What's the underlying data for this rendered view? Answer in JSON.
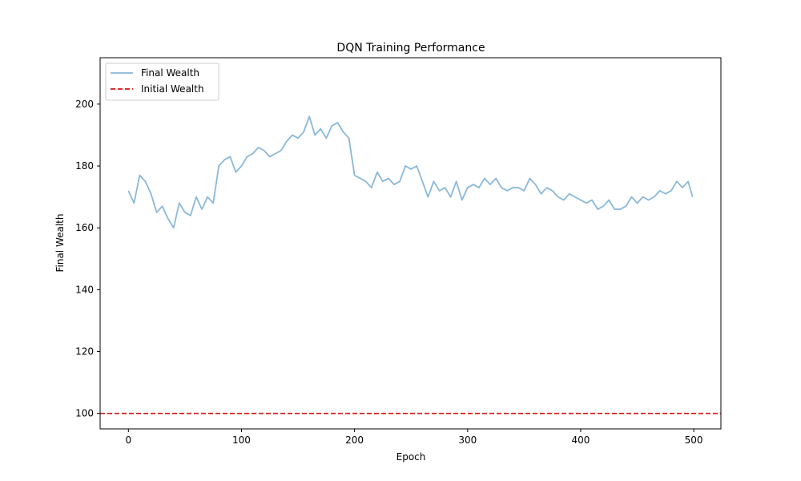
{
  "chart_data": {
    "type": "line",
    "title": "DQN Training Performance",
    "xlabel": "Epoch",
    "ylabel": "Final Wealth",
    "xlim": [
      -25,
      524
    ],
    "ylim": [
      95,
      215
    ],
    "xticks": [
      0,
      100,
      200,
      300,
      400,
      500
    ],
    "yticks": [
      100,
      120,
      140,
      160,
      180,
      200
    ],
    "grid": false,
    "legend_position": "top-left",
    "series": [
      {
        "name": "Final Wealth",
        "color": "#8ab8d9",
        "style": "solid",
        "x": [
          0,
          5,
          10,
          15,
          20,
          25,
          30,
          35,
          40,
          45,
          50,
          55,
          60,
          65,
          70,
          75,
          80,
          85,
          90,
          95,
          100,
          105,
          110,
          115,
          120,
          125,
          130,
          135,
          140,
          145,
          150,
          155,
          160,
          165,
          170,
          175,
          180,
          185,
          190,
          195,
          200,
          205,
          210,
          215,
          220,
          225,
          230,
          235,
          240,
          245,
          250,
          255,
          260,
          265,
          270,
          275,
          280,
          285,
          290,
          295,
          300,
          305,
          310,
          315,
          320,
          325,
          330,
          335,
          340,
          345,
          350,
          355,
          360,
          365,
          370,
          375,
          380,
          385,
          390,
          395,
          400,
          405,
          410,
          415,
          420,
          425,
          430,
          435,
          440,
          445,
          450,
          455,
          460,
          465,
          470,
          475,
          480,
          485,
          490,
          495,
          499
        ],
        "y": [
          172,
          168,
          177,
          175,
          171,
          165,
          167,
          163,
          160,
          168,
          165,
          164,
          170,
          166,
          170,
          168,
          180,
          182,
          183,
          178,
          180,
          183,
          184,
          186,
          185,
          183,
          184,
          185,
          188,
          190,
          189,
          191,
          196,
          190,
          192,
          189,
          193,
          194,
          191,
          189,
          177,
          176,
          175,
          173,
          178,
          175,
          176,
          174,
          175,
          180,
          179,
          180,
          175,
          170,
          175,
          172,
          173,
          170,
          175,
          169,
          173,
          174,
          173,
          176,
          174,
          176,
          173,
          172,
          173,
          173,
          172,
          176,
          174,
          171,
          173,
          172,
          170,
          169,
          171,
          170,
          169,
          168,
          169,
          166,
          167,
          169,
          166,
          166,
          167,
          170,
          168,
          170,
          169,
          170,
          172,
          171,
          172,
          175,
          173,
          175,
          170
        ]
      },
      {
        "name": "Initial Wealth",
        "color": "#dd1111",
        "style": "dashed",
        "hline": 100
      }
    ]
  }
}
